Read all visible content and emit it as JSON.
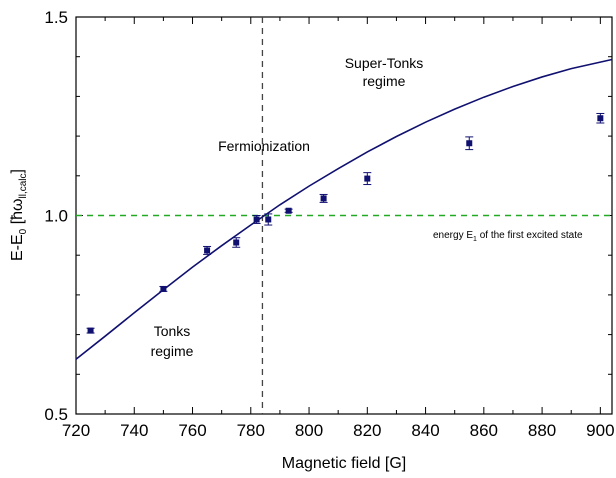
{
  "chart_data": {
    "type": "scatter",
    "xlabel": "Magnetic field [G]",
    "ylabel": {
      "main": "E-E",
      "sub0": "0",
      "bracket_open": " [ħω",
      "sub1": "ll,calc",
      "bracket_close": "]"
    },
    "xlim": [
      720,
      904
    ],
    "ylim": [
      0.5,
      1.5
    ],
    "xticks": [
      720,
      740,
      760,
      780,
      800,
      820,
      840,
      860,
      880,
      900
    ],
    "yticks": [
      0.5,
      1.0,
      1.5
    ],
    "ytick_labels": [
      "0.5",
      "1.0",
      "1.5"
    ],
    "grid": false,
    "legend": "none",
    "colors": {
      "series": "#101070",
      "reference": "#22aa22",
      "vertical": "#444444"
    },
    "series": [
      {
        "kind": "points",
        "x": [
          725,
          750,
          765,
          775,
          782,
          786,
          793,
          805,
          820,
          855,
          900
        ],
        "y": [
          0.71,
          0.815,
          0.912,
          0.932,
          0.99,
          0.99,
          1.012,
          1.043,
          1.093,
          1.182,
          1.245
        ],
        "err": [
          0.006,
          0.006,
          0.01,
          0.012,
          0.01,
          0.014,
          0.004,
          0.01,
          0.015,
          0.016,
          0.012
        ]
      },
      {
        "kind": "curve",
        "x": [
          720,
          730,
          740,
          750,
          760,
          770,
          780,
          790,
          800,
          810,
          820,
          830,
          840,
          850,
          860,
          870,
          880,
          890,
          904
        ],
        "y": [
          0.638,
          0.696,
          0.755,
          0.813,
          0.87,
          0.924,
          0.976,
          1.027,
          1.074,
          1.118,
          1.16,
          1.199,
          1.235,
          1.268,
          1.298,
          1.325,
          1.349,
          1.37,
          1.393
        ]
      }
    ],
    "reference_line": {
      "y": 1.0,
      "style": "dashed"
    },
    "vertical_line": {
      "x": 784,
      "style": "dashed"
    },
    "annotations": {
      "super_tonks_1": "Super-Tonks",
      "super_tonks_2": "regime",
      "fermionization": "Fermionization",
      "tonks_1": "Tonks",
      "tonks_2": "regime",
      "energy_part1": "energy E",
      "energy_sub": "1",
      "energy_part2": " of the first excited state"
    }
  }
}
